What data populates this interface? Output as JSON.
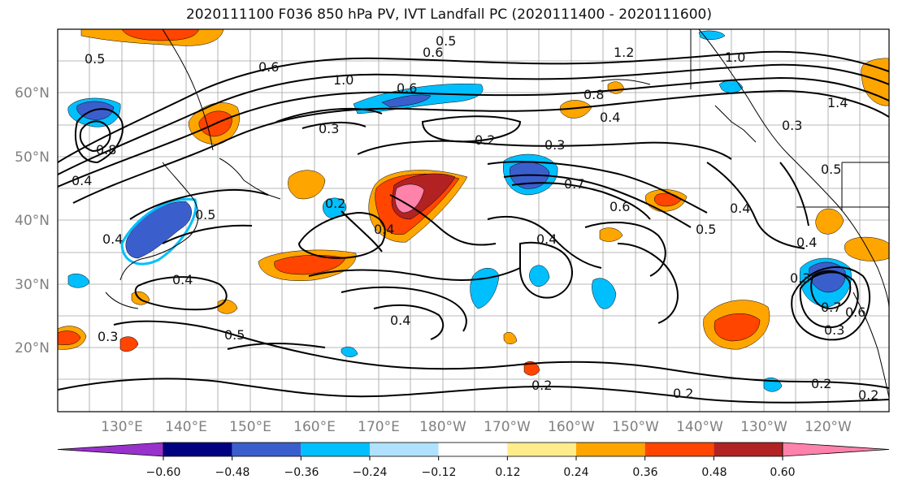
{
  "title": "2020111100 F036 850 hPa PV, IVT Landfall PC (2020111400 - 2020111600)",
  "latitude_labels": [
    "60°N",
    "50°N",
    "40°N",
    "30°N",
    "20°N"
  ],
  "longitude_labels": [
    "130°E",
    "140°E",
    "150°E",
    "160°E",
    "170°E",
    "180°W",
    "170°W",
    "160°W",
    "150°W",
    "140°W",
    "130°W",
    "120°W"
  ],
  "contour_labels": [
    "0.5",
    "0.6",
    "0.6",
    "0.5",
    "1.0",
    "1.2",
    "1.0",
    "0.6",
    "0.8",
    "0.4",
    "1.4",
    "0.3",
    "0.2",
    "0.3",
    "0.7",
    "0.6",
    "0.5",
    "0.4",
    "0.5",
    "0.4",
    "0.2",
    "0.5",
    "0.4",
    "0.3",
    "0.4",
    "0.4",
    "0.3",
    "0.4",
    "0.2",
    "0.2",
    "0.2",
    "0.3",
    "0.6",
    "0.7",
    "0.3",
    "0.2",
    "0.5",
    "0.8",
    "0.4",
    "0.4"
  ],
  "colorbar": {
    "tick_labels": [
      "−0.60",
      "−0.48",
      "−0.36",
      "−0.24",
      "−0.12",
      "0.12",
      "0.24",
      "0.36",
      "0.48",
      "0.60"
    ],
    "colors": [
      "#9932cc",
      "#000080",
      "#3a5fcd",
      "#00bfff",
      "#b0e2ff",
      "#ffffff",
      "#ffec8b",
      "#ffa500",
      "#ff4500",
      "#b22222",
      "#ff82ab"
    ]
  }
}
